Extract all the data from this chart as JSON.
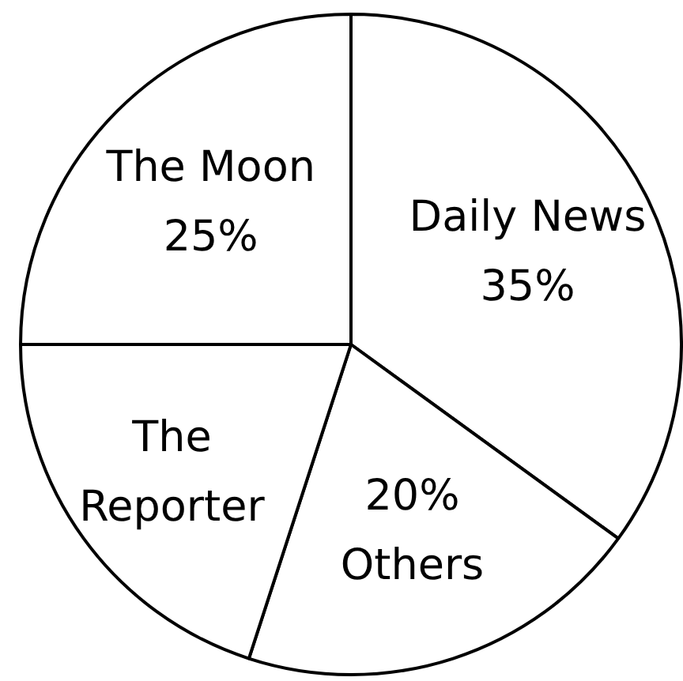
{
  "chart_data": {
    "type": "pie",
    "categories": [
      "Daily News",
      "Others",
      "The Reporter",
      "The Moon"
    ],
    "values": [
      35,
      20,
      20,
      25
    ],
    "colors": [
      "#ffffff",
      "#ffffff",
      "#ffffff",
      "#ffffff"
    ],
    "value_labels": [
      "35%",
      "20%",
      null,
      "25%"
    ]
  }
}
